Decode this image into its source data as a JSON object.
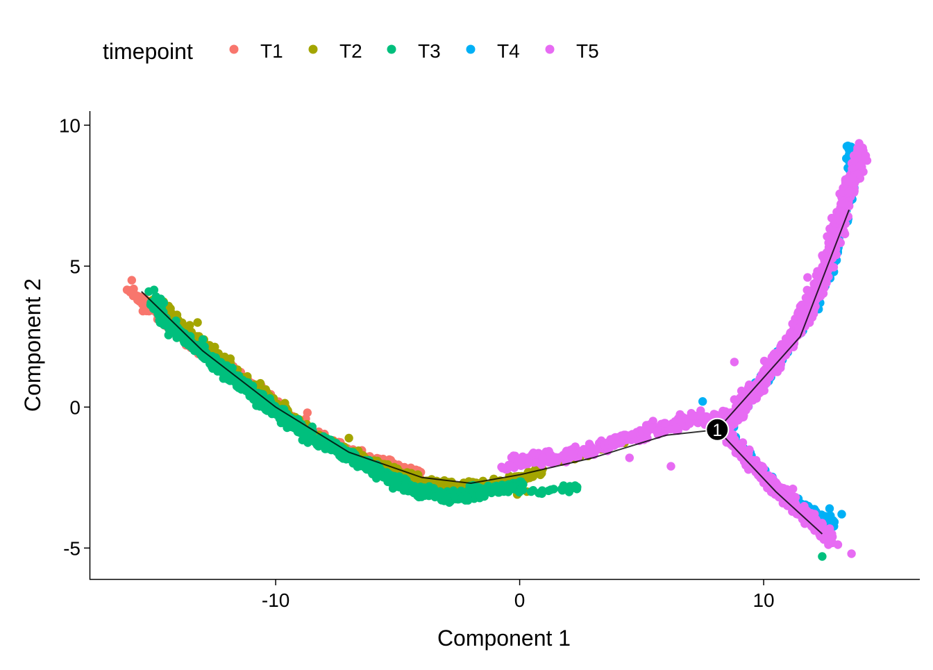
{
  "chart_data": {
    "type": "scatter",
    "xlabel": "Component 1",
    "ylabel": "Component 2",
    "xlim": [
      -17.6,
      16.4
    ],
    "ylim": [
      -6.1,
      10.5
    ],
    "x_ticks": [
      -10,
      0,
      10
    ],
    "y_ticks": [
      -5,
      0,
      5,
      10
    ],
    "x_tick_labels": [
      "-10",
      "0",
      "10"
    ],
    "y_tick_labels": [
      "-5",
      "0",
      "5",
      "10"
    ],
    "grid": false,
    "legend": {
      "position": "top-left",
      "title": "timepoint",
      "entries": [
        {
          "label": "T1",
          "color": "#F8766D"
        },
        {
          "label": "T2",
          "color": "#A3A500"
        },
        {
          "label": "T3",
          "color": "#00BF7D"
        },
        {
          "label": "T4",
          "color": "#00B0F6"
        },
        {
          "label": "T5",
          "color": "#E76BF3"
        }
      ]
    },
    "trajectory": {
      "color": "#000000",
      "path": [
        [
          -15.5,
          4.1
        ],
        [
          -13,
          2.0
        ],
        [
          -10,
          0.0
        ],
        [
          -7,
          -1.6
        ],
        [
          -4,
          -2.5
        ],
        [
          -2,
          -2.7
        ],
        [
          0,
          -2.4
        ],
        [
          3,
          -1.8
        ],
        [
          6,
          -1.0
        ],
        [
          8.1,
          -0.8
        ],
        [
          11.5,
          2.5
        ],
        [
          13.5,
          7.0
        ]
      ],
      "branch": [
        [
          8.1,
          -0.8
        ],
        [
          10.5,
          -3.0
        ],
        [
          12.4,
          -4.5
        ]
      ]
    },
    "branch_points": [
      {
        "label": "1",
        "x": 8.1,
        "y": -0.8
      }
    ],
    "series": [
      {
        "name": "T1",
        "color": "#F8766D",
        "segments": [
          {
            "path": [
              [
                -16.0,
                4.2
              ],
              [
                -14.5,
                3.0
              ],
              [
                -13.0,
                2.0
              ],
              [
                -11.5,
                1.0
              ],
              [
                -10.5,
                0.5
              ],
              [
                -9.5,
                -0.3
              ],
              [
                -8.5,
                -0.9
              ],
              [
                -7.5,
                -1.3
              ],
              [
                -6.5,
                -1.7
              ],
              [
                -5.0,
                -2.1
              ],
              [
                -4.0,
                -2.5
              ]
            ],
            "count": 260,
            "spread": [
              0.35,
              0.22
            ]
          }
        ],
        "outliers": [
          [
            -8.7,
            -0.2
          ],
          [
            -11.3,
            0.8
          ],
          [
            -15.9,
            4.5
          ],
          [
            -4.5,
            -2.3
          ]
        ]
      },
      {
        "name": "T2",
        "color": "#A3A500",
        "segments": [
          {
            "path": [
              [
                -15.0,
                3.8
              ],
              [
                -13.5,
                2.6
              ],
              [
                -12.0,
                1.5
              ],
              [
                -10.5,
                0.4
              ],
              [
                -9.0,
                -0.6
              ],
              [
                -7.5,
                -1.4
              ],
              [
                -6.0,
                -2.0
              ],
              [
                -4.5,
                -2.5
              ],
              [
                -3.0,
                -2.8
              ],
              [
                -1.5,
                -2.8
              ],
              [
                0.0,
                -2.5
              ],
              [
                0.8,
                -2.3
              ]
            ],
            "count": 420,
            "spread": [
              0.4,
              0.25
            ]
          },
          {
            "path": [
              [
                1.2,
                -2.0
              ],
              [
                2.5,
                -1.7
              ],
              [
                4.0,
                -1.3
              ]
            ],
            "count": 18,
            "spread": [
              0.4,
              0.2
            ]
          }
        ],
        "outliers": [
          [
            -13.2,
            3.0
          ],
          [
            -7.0,
            -1.1
          ],
          [
            -6.8,
            -1.7
          ],
          [
            -0.1,
            -3.1
          ],
          [
            0.3,
            -3.0
          ],
          [
            -11.0,
            0.6
          ]
        ]
      },
      {
        "name": "T3",
        "color": "#00BF7D",
        "segments": [
          {
            "path": [
              [
                -15.0,
                4.0
              ],
              [
                -14.5,
                3.0
              ],
              [
                -13.5,
                2.3
              ],
              [
                -12.0,
                1.2
              ],
              [
                -10.5,
                0.2
              ],
              [
                -9.0,
                -0.8
              ],
              [
                -7.5,
                -1.5
              ],
              [
                -6.0,
                -2.2
              ],
              [
                -4.5,
                -2.9
              ],
              [
                -3.0,
                -3.2
              ],
              [
                -1.5,
                -3.0
              ],
              [
                0.0,
                -2.8
              ]
            ],
            "count": 850,
            "spread": [
              0.4,
              0.26
            ]
          },
          {
            "path": [
              [
                0.5,
                -3.0
              ],
              [
                1.5,
                -2.9
              ],
              [
                2.5,
                -2.8
              ]
            ],
            "count": 20,
            "spread": [
              0.4,
              0.15
            ]
          }
        ],
        "outliers": [
          [
            -8.5,
            -0.7
          ],
          [
            -15.2,
            4.1
          ],
          [
            12.4,
            -5.3
          ]
        ]
      },
      {
        "name": "T4",
        "color": "#00B0F6",
        "segments": [
          {
            "path": [
              [
                8.6,
                -0.6
              ],
              [
                10.0,
                1.0
              ],
              [
                11.0,
                2.3
              ],
              [
                12.0,
                3.6
              ],
              [
                12.8,
                5.2
              ],
              [
                13.3,
                6.8
              ],
              [
                13.6,
                8.2
              ],
              [
                13.5,
                9.3
              ]
            ],
            "count": 320,
            "spread": [
              0.26,
              0.32
            ]
          },
          {
            "path": [
              [
                8.6,
                -1.0
              ],
              [
                9.8,
                -2.2
              ],
              [
                11.0,
                -3.3
              ],
              [
                12.0,
                -3.7
              ],
              [
                13.0,
                -4.2
              ]
            ],
            "count": 240,
            "spread": [
              0.28,
              0.2
            ]
          }
        ],
        "outliers": [
          [
            7.5,
            0.2
          ],
          [
            12.7,
            -3.6
          ],
          [
            13.2,
            -3.8
          ]
        ]
      },
      {
        "name": "T5",
        "color": "#E76BF3",
        "segments": [
          {
            "path": [
              [
                -0.5,
                -2.0
              ],
              [
                1.0,
                -1.8
              ],
              [
                2.5,
                -1.6
              ],
              [
                4.0,
                -1.2
              ],
              [
                5.5,
                -0.8
              ],
              [
                6.8,
                -0.5
              ],
              [
                7.5,
                -0.3
              ],
              [
                8.1,
                -0.8
              ]
            ],
            "count": 330,
            "spread": [
              0.4,
              0.3
            ]
          },
          {
            "path": [
              [
                8.5,
                -0.6
              ],
              [
                9.8,
                0.8
              ],
              [
                10.8,
                2.0
              ],
              [
                11.7,
                3.3
              ],
              [
                12.4,
                4.6
              ],
              [
                12.9,
                5.9
              ],
              [
                13.3,
                7.2
              ],
              [
                13.7,
                8.2
              ],
              [
                14.0,
                9.2
              ]
            ],
            "count": 720,
            "spread": [
              0.36,
              0.42
            ]
          },
          {
            "path": [
              [
                8.4,
                -0.9
              ],
              [
                9.5,
                -2.0
              ],
              [
                10.5,
                -2.9
              ],
              [
                11.4,
                -3.6
              ],
              [
                12.2,
                -4.2
              ],
              [
                12.8,
                -4.7
              ]
            ],
            "count": 420,
            "spread": [
              0.26,
              0.3
            ]
          }
        ],
        "outliers": [
          [
            8.8,
            1.6
          ],
          [
            6.2,
            -2.1
          ],
          [
            13.6,
            -5.2
          ],
          [
            11.2,
            -2.9
          ],
          [
            4.5,
            -1.8
          ],
          [
            11.8,
            4.6
          ]
        ]
      }
    ]
  }
}
